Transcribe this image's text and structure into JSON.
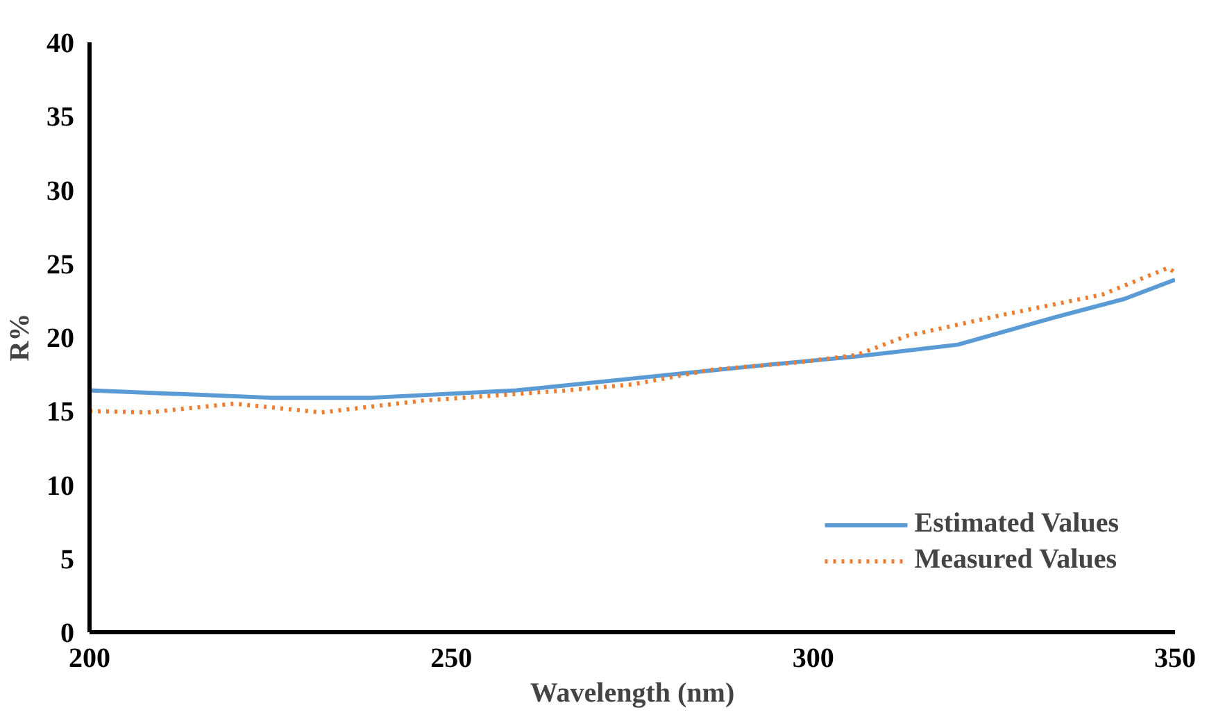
{
  "chart_data": {
    "type": "line",
    "xlabel": "Wavelength (nm)",
    "ylabel": "R%",
    "xlim": [
      200,
      350
    ],
    "xticks": [
      200,
      250,
      300,
      350
    ],
    "ylim": [
      0,
      40
    ],
    "yticks": [
      0,
      5,
      10,
      15,
      20,
      25,
      30,
      35,
      40
    ],
    "grid": false,
    "legend": "bottom right",
    "series": [
      {
        "name": "Estimated Values",
        "color": "#5b9bd5",
        "line_style": "solid",
        "x": [
          200,
          225,
          239,
          259,
          273,
          293,
          306,
          320,
          333,
          343,
          350
        ],
        "values": [
          16.4,
          15.9,
          15.9,
          16.4,
          17.1,
          18.1,
          18.7,
          19.5,
          21.3,
          22.6,
          23.9
        ]
      },
      {
        "name": "Measured Values",
        "color": "#ed7d31",
        "line_style": "dotted",
        "x": [
          200,
          208,
          220,
          232,
          246,
          266,
          275,
          286,
          298,
          306,
          313,
          326,
          340,
          349,
          350
        ],
        "values": [
          15.0,
          14.9,
          15.5,
          14.9,
          15.7,
          16.4,
          16.8,
          17.8,
          18.3,
          18.8,
          20.1,
          21.5,
          22.9,
          24.7,
          24.4
        ]
      }
    ]
  }
}
